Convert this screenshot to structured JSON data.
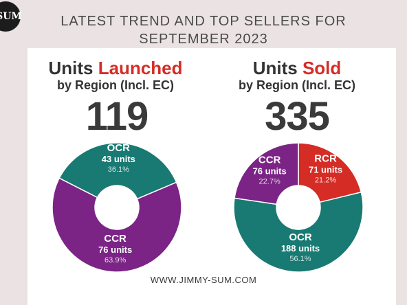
{
  "logo": {
    "text": "SUM"
  },
  "headline": {
    "line1": "LATEST TREND AND TOP SELLERS FOR",
    "line2": "SEPTEMBER 2023"
  },
  "footer": {
    "url": "WWW.JIMMY-SUM.COM"
  },
  "colors": {
    "ocr": "#187a72",
    "ccr": "#7b2486",
    "rcr": "#d52c26",
    "text": "#333333"
  },
  "chart_data": [
    {
      "type": "pie",
      "title_prefix": "Units ",
      "title_accent": "Launched",
      "subtitle": "by Region (Incl. EC)",
      "total": "119",
      "slices": [
        {
          "name": "OCR",
          "value": 43,
          "units_label": "43 units",
          "percent": 36.1,
          "percent_label": "36.1%",
          "color": "#187a72"
        },
        {
          "name": "CCR",
          "value": 76,
          "units_label": "76 units",
          "percent": 63.9,
          "percent_label": "63.9%",
          "color": "#7b2486"
        }
      ]
    },
    {
      "type": "pie",
      "title_prefix": "Units ",
      "title_accent": "Sold",
      "subtitle": "by Region (Incl. EC)",
      "total": "335",
      "slices": [
        {
          "name": "RCR",
          "value": 71,
          "units_label": "71 units",
          "percent": 21.2,
          "percent_label": "21.2%",
          "color": "#d52c26"
        },
        {
          "name": "OCR",
          "value": 188,
          "units_label": "188 units",
          "percent": 56.1,
          "percent_label": "56.1%",
          "color": "#187a72"
        },
        {
          "name": "CCR",
          "value": 76,
          "units_label": "76 units",
          "percent": 22.7,
          "percent_label": "22.7%",
          "color": "#7b2486"
        }
      ]
    }
  ]
}
